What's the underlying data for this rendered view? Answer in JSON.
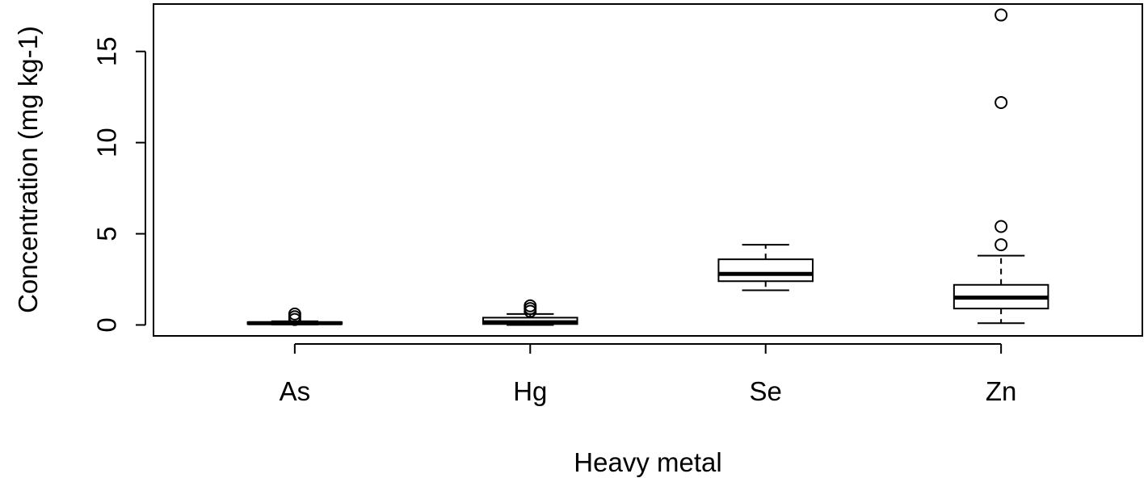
{
  "chart_data": {
    "type": "boxplot",
    "title": "",
    "xlabel": "Heavy metal",
    "ylabel": "Concentration (mg kg-1)",
    "categories": [
      "As",
      "Hg",
      "Se",
      "Zn"
    ],
    "ylim": [
      -0.6,
      17.6
    ],
    "yticks": [
      0,
      5,
      10,
      15
    ],
    "ytick_labels": [
      "0",
      "5",
      "10",
      "15"
    ],
    "grid": false,
    "legend": "none",
    "boxes": [
      {
        "name": "As",
        "whisker_low": 0.02,
        "q1": 0.05,
        "median": 0.1,
        "q3": 0.15,
        "whisker_high": 0.2,
        "outliers": [
          0.3,
          0.45,
          0.6
        ]
      },
      {
        "name": "Hg",
        "whisker_low": 0.0,
        "q1": 0.05,
        "median": 0.15,
        "q3": 0.4,
        "whisker_high": 0.6,
        "outliers": [
          0.75,
          0.9,
          1.05
        ]
      },
      {
        "name": "Se",
        "whisker_low": 1.9,
        "q1": 2.4,
        "median": 2.8,
        "q3": 3.6,
        "whisker_high": 4.4,
        "outliers": []
      },
      {
        "name": "Zn",
        "whisker_low": 0.1,
        "q1": 0.9,
        "median": 1.5,
        "q3": 2.2,
        "whisker_high": 3.8,
        "outliers": [
          4.4,
          5.4,
          12.2,
          17.0
        ]
      }
    ]
  }
}
